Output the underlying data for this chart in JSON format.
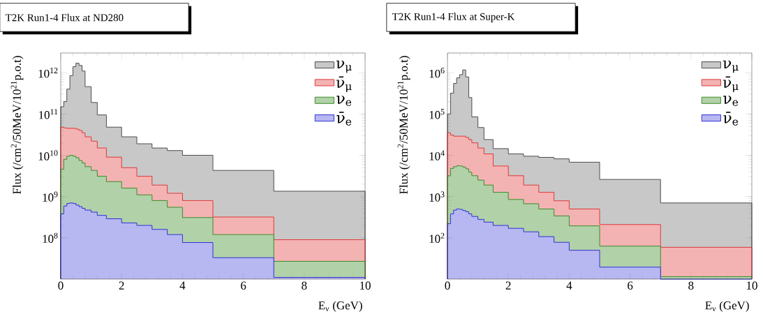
{
  "chart_data": [
    {
      "type": "histogram",
      "title": "T2K Run1-4 Flux at ND280",
      "xlabel": "E$_{ν}$ (GeV)",
      "ylabel": "Flux (/cm$^{2}$/50MeV/10$^{21}$p.o.t)",
      "log": "y",
      "legend": "top right",
      "grid": false,
      "bins": [
        0,
        0.1,
        0.2,
        0.3,
        0.4,
        0.5,
        0.6,
        0.7,
        0.8,
        1.0,
        1.2,
        1.5,
        2.0,
        2.5,
        3.0,
        3.5,
        4.0,
        5.0,
        7.0,
        10.0
      ],
      "xlim": [
        0,
        10
      ],
      "xticks": [
        0,
        2,
        4,
        6,
        8,
        10
      ],
      "ylim": [
        10000000.0,
        3000000000000.0
      ],
      "yticks": [
        {
          "value": 100000000.0,
          "label": "10$^{8}$"
        },
        {
          "value": 1000000000.0,
          "label": "10$^{9}$"
        },
        {
          "value": 10000000000.0,
          "label": "10$^{10}$"
        },
        {
          "value": 100000000000.0,
          "label": "10$^{11}$"
        },
        {
          "value": 1000000000000.0,
          "label": "10$^{12}$"
        }
      ],
      "series": [
        {
          "name": "ν$_{μ}$",
          "color": "#c8c8c8",
          "values": [
            150000000000.0,
            200000000000.0,
            400000000000.0,
            850000000000.0,
            1400000000000.0,
            1700000000000.0,
            1500000000000.0,
            1100000000000.0,
            460000000000.0,
            190000000000.0,
            95000000000.0,
            48000000000.0,
            28000000000.0,
            19000000000.0,
            15000000000.0,
            13000000000.0,
            10000000000.0,
            4300000000.0,
            1350000000.0
          ]
        },
        {
          "name": "ν̄$_{μ}$",
          "color": "#e03838",
          "values": [
            48000000000.0,
            46000000000.0,
            45000000000.0,
            45000000000.0,
            45000000000.0,
            43000000000.0,
            40000000000.0,
            35000000000.0,
            28000000000.0,
            22000000000.0,
            15000000000.0,
            9000000000.0,
            5000000000.0,
            3100000000.0,
            1900000000.0,
            1200000000.0,
            800000000.0,
            320000000.0,
            90000000.0
          ]
        },
        {
          "name": "ν$_{e}$",
          "color": "#3c8c28",
          "values": [
            4600000000.0,
            8000000000.0,
            9500000000.0,
            10000000000.0,
            9500000000.0,
            8700000000.0,
            7500000000.0,
            6500000000.0,
            5300000000.0,
            4300000000.0,
            3100000000.0,
            2300000000.0,
            1600000000.0,
            1100000000.0,
            800000000.0,
            550000000.0,
            310000000.0,
            120000000.0,
            27000000.0
          ]
        },
        {
          "name": "ν̄$_{e}$",
          "color": "#3030d8",
          "values": [
            380000000.0,
            590000000.0,
            680000000.0,
            700000000.0,
            680000000.0,
            620000000.0,
            570000000.0,
            520000000.0,
            470000000.0,
            420000000.0,
            350000000.0,
            290000000.0,
            230000000.0,
            200000000.0,
            160000000.0,
            120000000.0,
            77000000.0,
            33000000.0,
            11000000.0
          ]
        }
      ]
    },
    {
      "type": "histogram",
      "title": "T2K Run1-4 Flux at Super-K",
      "xlabel": "E$_{ν}$ (GeV)",
      "ylabel": "Flux (/cm$^{2}$/50MeV/10$^{21}$p.o.t)",
      "log": "y",
      "legend": "top right",
      "grid": false,
      "bins": [
        0,
        0.1,
        0.2,
        0.3,
        0.4,
        0.5,
        0.6,
        0.7,
        0.8,
        1.0,
        1.2,
        1.5,
        2.0,
        2.5,
        3.0,
        3.5,
        4.0,
        5.0,
        7.0,
        10.0
      ],
      "xlim": [
        0,
        10
      ],
      "xticks": [
        0,
        2,
        4,
        6,
        8,
        10
      ],
      "ylim": [
        10,
        3000000.0
      ],
      "yticks": [
        {
          "value": 100,
          "label": "10$^{2}$"
        },
        {
          "value": 1000,
          "label": "10$^{3}$"
        },
        {
          "value": 10000,
          "label": "10$^{4}$"
        },
        {
          "value": 100000,
          "label": "10$^{5}$"
        },
        {
          "value": 1000000,
          "label": "10$^{6}$"
        }
      ],
      "series": [
        {
          "name": "ν$_{μ}$",
          "color": "#c8c8c8",
          "values": [
            100000.0,
            320000.0,
            550000.0,
            750000.0,
            900000.0,
            1170000.0,
            790000.0,
            250000.0,
            85000.0,
            47000.0,
            24000.0,
            14500.0,
            10800.0,
            9500.0,
            8900.0,
            8200.0,
            6800.0,
            2600.0,
            700
          ]
        },
        {
          "name": "ν̄$_{μ}$",
          "color": "#e03838",
          "values": [
            35000.0,
            31000.0,
            29000.0,
            29000.0,
            29000.0,
            29000.0,
            27000.0,
            24000.0,
            20000.0,
            15000.0,
            10800.0,
            5500.0,
            3200.0,
            1900.0,
            1270.0,
            790,
            500,
            210,
            59
          ]
        },
        {
          "name": "ν$_{e}$",
          "color": "#3c8c28",
          "values": [
            3200.0,
            4800.0,
            5300.0,
            5600.0,
            5500.0,
            5200.0,
            4700.0,
            3900.0,
            3200.0,
            2500.0,
            1900.0,
            1270.0,
            850,
            670,
            500,
            340,
            195,
            63,
            11.5
          ]
        },
        {
          "name": "ν̄$_{e}$",
          "color": "#3030d8",
          "values": [
            220,
            380,
            470,
            500,
            490,
            460,
            430,
            380,
            330,
            280,
            240,
            200,
            170,
            140,
            107,
            78,
            50,
            19.5,
            10
          ]
        }
      ]
    }
  ]
}
